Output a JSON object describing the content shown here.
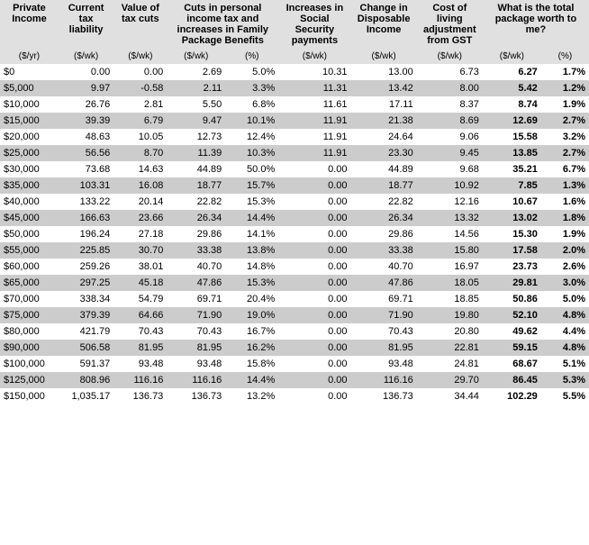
{
  "table": {
    "headers_row1": [
      "Private Income",
      "Current tax liability",
      "Value of tax cuts",
      "Cuts in personal income tax and increases in Family Package Benefits",
      "Increases in Social Security payments",
      "Change in Disposable Income",
      "Cost of living adjustment from GST",
      "What is the total package worth to me?"
    ],
    "units": [
      "($/yr)",
      "($/wk)",
      "($/wk)",
      "($/wk)",
      "(%)",
      "($/wk)",
      "($/wk)",
      "($/wk)",
      "($/wk)",
      "(%)"
    ],
    "rows": [
      [
        "$0",
        "0.00",
        "0.00",
        "2.69",
        "5.0%",
        "10.31",
        "13.00",
        "6.73",
        "6.27",
        "1.7%"
      ],
      [
        "$5,000",
        "9.97",
        "-0.58",
        "2.11",
        "3.3%",
        "11.31",
        "13.42",
        "8.00",
        "5.42",
        "1.2%"
      ],
      [
        "$10,000",
        "26.76",
        "2.81",
        "5.50",
        "6.8%",
        "11.61",
        "17.11",
        "8.37",
        "8.74",
        "1.9%"
      ],
      [
        "$15,000",
        "39.39",
        "6.79",
        "9.47",
        "10.1%",
        "11.91",
        "21.38",
        "8.69",
        "12.69",
        "2.7%"
      ],
      [
        "$20,000",
        "48.63",
        "10.05",
        "12.73",
        "12.4%",
        "11.91",
        "24.64",
        "9.06",
        "15.58",
        "3.2%"
      ],
      [
        "$25,000",
        "56.56",
        "8.70",
        "11.39",
        "10.3%",
        "11.91",
        "23.30",
        "9.45",
        "13.85",
        "2.7%"
      ],
      [
        "$30,000",
        "73.68",
        "14.63",
        "44.89",
        "50.0%",
        "0.00",
        "44.89",
        "9.68",
        "35.21",
        "6.7%"
      ],
      [
        "$35,000",
        "103.31",
        "16.08",
        "18.77",
        "15.7%",
        "0.00",
        "18.77",
        "10.92",
        "7.85",
        "1.3%"
      ],
      [
        "$40,000",
        "133.22",
        "20.14",
        "22.82",
        "15.3%",
        "0.00",
        "22.82",
        "12.16",
        "10.67",
        "1.6%"
      ],
      [
        "$45,000",
        "166.63",
        "23.66",
        "26.34",
        "14.4%",
        "0.00",
        "26.34",
        "13.32",
        "13.02",
        "1.8%"
      ],
      [
        "$50,000",
        "196.24",
        "27.18",
        "29.86",
        "14.1%",
        "0.00",
        "29.86",
        "14.56",
        "15.30",
        "1.9%"
      ],
      [
        "$55,000",
        "225.85",
        "30.70",
        "33.38",
        "13.8%",
        "0.00",
        "33.38",
        "15.80",
        "17.58",
        "2.0%"
      ],
      [
        "$60,000",
        "259.26",
        "38.01",
        "40.70",
        "14.8%",
        "0.00",
        "40.70",
        "16.97",
        "23.73",
        "2.6%"
      ],
      [
        "$65,000",
        "297.25",
        "45.18",
        "47.86",
        "15.3%",
        "0.00",
        "47.86",
        "18.05",
        "29.81",
        "3.0%"
      ],
      [
        "$70,000",
        "338.34",
        "54.79",
        "69.71",
        "20.4%",
        "0.00",
        "69.71",
        "18.85",
        "50.86",
        "5.0%"
      ],
      [
        "$75,000",
        "379.39",
        "64.66",
        "71.90",
        "19.0%",
        "0.00",
        "71.90",
        "19.80",
        "52.10",
        "4.8%"
      ],
      [
        "$80,000",
        "421.79",
        "70.43",
        "70.43",
        "16.7%",
        "0.00",
        "70.43",
        "20.80",
        "49.62",
        "4.4%"
      ],
      [
        "$90,000",
        "506.58",
        "81.95",
        "81.95",
        "16.2%",
        "0.00",
        "81.95",
        "22.81",
        "59.15",
        "4.8%"
      ],
      [
        "$100,000",
        "591.37",
        "93.48",
        "93.48",
        "15.8%",
        "0.00",
        "93.48",
        "24.81",
        "68.67",
        "5.1%"
      ],
      [
        "$125,000",
        "808.96",
        "116.16",
        "116.16",
        "14.4%",
        "0.00",
        "116.16",
        "29.70",
        "86.45",
        "5.3%"
      ],
      [
        "$150,000",
        "1,035.17",
        "136.73",
        "136.73",
        "13.2%",
        "0.00",
        "136.73",
        "34.44",
        "102.29",
        "5.5%"
      ]
    ],
    "row_odd_bg": "#ffffff",
    "row_even_bg": "#cccccc",
    "header_bg": "#e0e0e0",
    "bold_columns": [
      8,
      9
    ],
    "font_size": 11
  }
}
